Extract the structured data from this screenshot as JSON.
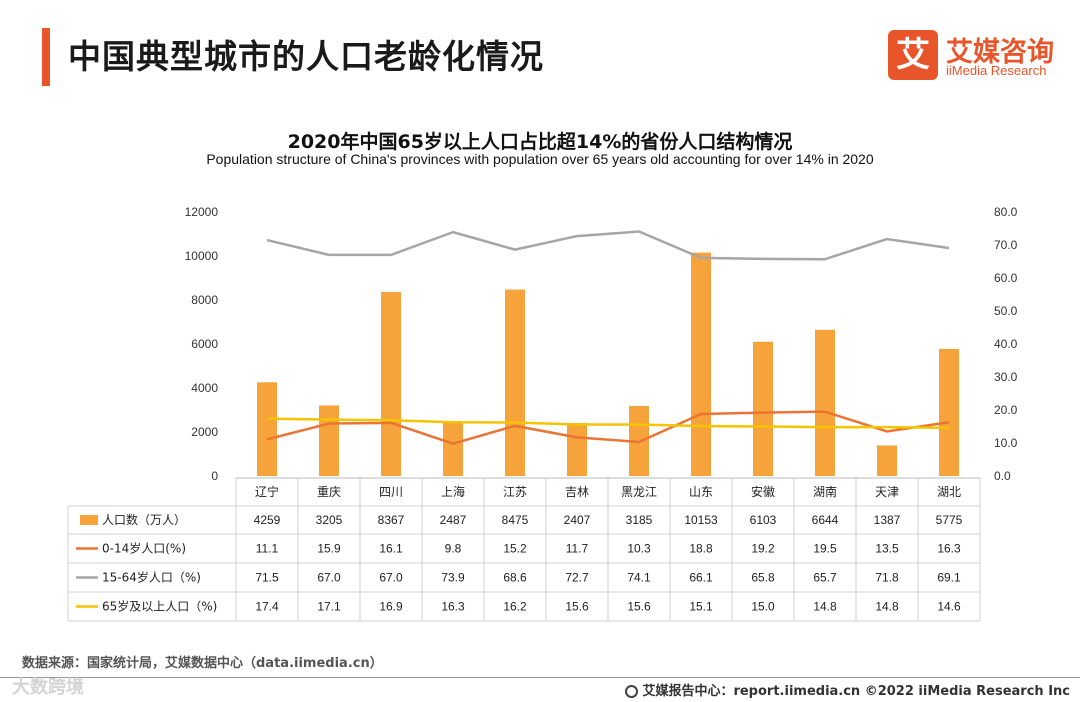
{
  "header": {
    "title": "中国典型城市的人口老龄化情况",
    "logo_mark": "艾",
    "logo_cn": "艾媒咨询",
    "logo_en": "iiMedia Research"
  },
  "colors": {
    "accent": "#e8552a",
    "bar": "#f7a33b",
    "line_0_14": "#ea7434",
    "line_15_64": "#a6a6a6",
    "line_65": "#f5c400"
  },
  "chart_data": {
    "type": "bar+line+table",
    "title": "2020年中国65岁以上人口占比超14%的省份人口结构情况",
    "subtitle": "Population structure of China's provinces with population over 65 years old accounting for over 14% in 2020",
    "categories": [
      "辽宁",
      "重庆",
      "四川",
      "上海",
      "江苏",
      "吉林",
      "黑龙江",
      "山东",
      "安徽",
      "湖南",
      "天津",
      "湖北"
    ],
    "y_left": {
      "ylim": [
        0,
        12000
      ],
      "ticks": [
        "0",
        "2000",
        "4000",
        "6000",
        "8000",
        "10000",
        "12000"
      ]
    },
    "y_right": {
      "ylim": [
        0,
        80
      ],
      "ticks": [
        "0.0",
        "10.0",
        "20.0",
        "30.0",
        "40.0",
        "50.0",
        "60.0",
        "70.0",
        "80.0"
      ]
    },
    "series": [
      {
        "name": "人口数（万人）",
        "type": "bar",
        "axis": "left",
        "values": [
          4259,
          3205,
          8367,
          2487,
          8475,
          2407,
          3185,
          10153,
          6103,
          6644,
          1387,
          5775
        ],
        "labels": [
          "4259",
          "3205",
          "8367",
          "2487",
          "8475",
          "2407",
          "3185",
          "10153",
          "6103",
          "6644",
          "1387",
          "5775"
        ]
      },
      {
        "name": "0-14岁人口(%)",
        "type": "line",
        "axis": "right",
        "values": [
          11.1,
          15.9,
          16.1,
          9.8,
          15.2,
          11.7,
          10.3,
          18.8,
          19.2,
          19.5,
          13.5,
          16.3
        ],
        "labels": [
          "11.1",
          "15.9",
          "16.1",
          "9.8",
          "15.2",
          "11.7",
          "10.3",
          "18.8",
          "19.2",
          "19.5",
          "13.5",
          "16.3"
        ]
      },
      {
        "name": "15-64岁人口（%)",
        "type": "line",
        "axis": "right",
        "values": [
          71.5,
          67.0,
          67.0,
          73.9,
          68.6,
          72.7,
          74.1,
          66.1,
          65.8,
          65.7,
          71.8,
          69.1
        ],
        "labels": [
          "71.5",
          "67.0",
          "67.0",
          "73.9",
          "68.6",
          "72.7",
          "74.1",
          "66.1",
          "65.8",
          "65.7",
          "71.8",
          "69.1"
        ]
      },
      {
        "name": "65岁及以上人口（%)",
        "type": "line",
        "axis": "right",
        "values": [
          17.4,
          17.1,
          16.9,
          16.3,
          16.2,
          15.6,
          15.6,
          15.1,
          15.0,
          14.8,
          14.8,
          14.6
        ],
        "labels": [
          "17.4",
          "17.1",
          "16.9",
          "16.3",
          "16.2",
          "15.6",
          "15.6",
          "15.1",
          "15.0",
          "14.8",
          "14.8",
          "14.6"
        ]
      }
    ]
  },
  "footer": {
    "source": "数据来源：国家统计局，艾媒数据中心（data.iimedia.cn）",
    "report": "艾媒报告中心：report.iimedia.cn   ©2022  iiMedia Research  Inc",
    "watermark": "大数跨境"
  }
}
